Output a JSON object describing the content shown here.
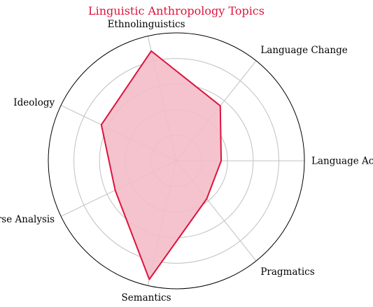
{
  "chart_data": {
    "type": "radar",
    "title": "Linguistic Anthropology Topics",
    "categories": [
      "Language Acquisition",
      "Language Change",
      "Ethnolinguistics",
      "Ideology",
      "Discourse Analysis",
      "Semantics",
      "Pragmatics"
    ],
    "series": [
      {
        "values": [
          35,
          55,
          88,
          65,
          53,
          95,
          38
        ]
      }
    ],
    "rlim": [
      0,
      100
    ],
    "rgrid": [
      20,
      40,
      60,
      80
    ],
    "grid": true,
    "colors": {
      "line": "#dc143c",
      "fill": "#f4bcc9",
      "title": "#dc143c",
      "grid": "#c0c0c0",
      "frame": "#000000"
    }
  }
}
